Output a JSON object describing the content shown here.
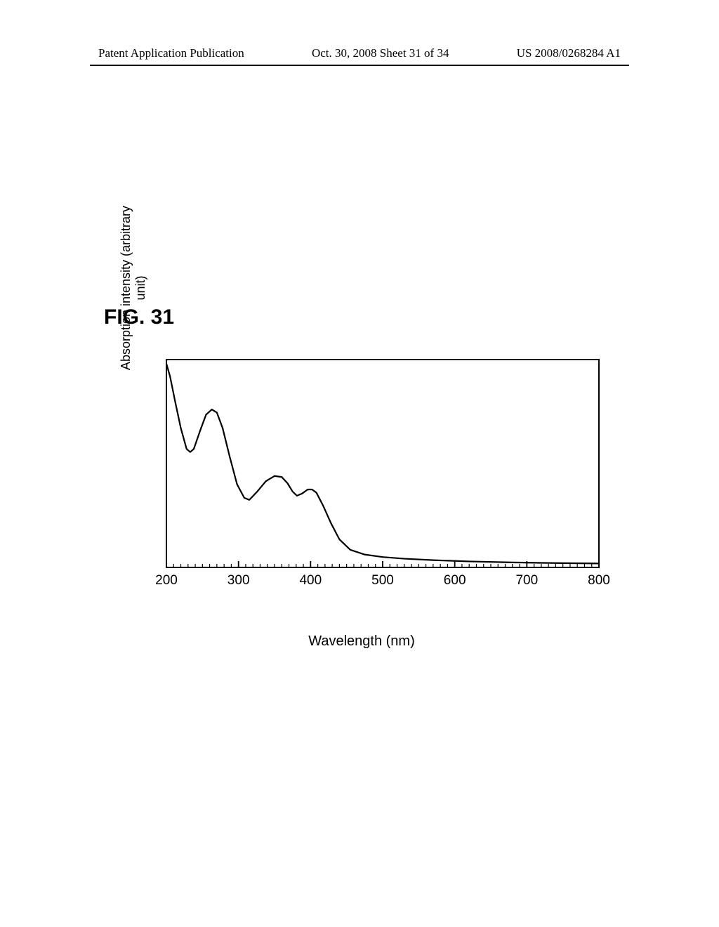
{
  "header": {
    "left": "Patent Application Publication",
    "middle": "Oct. 30, 2008  Sheet 31 of 34",
    "right": "US 2008/0268284 A1"
  },
  "figure": {
    "label": "FIG. 31"
  },
  "chart": {
    "type": "line",
    "xlabel": "Wavelength (nm)",
    "ylabel_line1": "Absorption intensity (arbitrary",
    "ylabel_line2": "unit)",
    "xlim": [
      200,
      800
    ],
    "ylim": [
      0,
      1
    ],
    "xticks_major": [
      200,
      300,
      400,
      500,
      600,
      700,
      800
    ],
    "xticks_minor_step": 10,
    "label_fontsize": 19,
    "axis_fontsize": 20,
    "axis_color": "#000000",
    "line_color": "#000000",
    "line_width": 2.2,
    "background_color": "#ffffff",
    "major_tick_len": 9,
    "minor_tick_len": 5,
    "series": [
      {
        "x": 200,
        "y": 0.98
      },
      {
        "x": 205,
        "y": 0.92
      },
      {
        "x": 212,
        "y": 0.8
      },
      {
        "x": 220,
        "y": 0.67
      },
      {
        "x": 228,
        "y": 0.57
      },
      {
        "x": 233,
        "y": 0.555
      },
      {
        "x": 238,
        "y": 0.57
      },
      {
        "x": 247,
        "y": 0.66
      },
      {
        "x": 255,
        "y": 0.735
      },
      {
        "x": 263,
        "y": 0.76
      },
      {
        "x": 270,
        "y": 0.745
      },
      {
        "x": 278,
        "y": 0.67
      },
      {
        "x": 288,
        "y": 0.53
      },
      {
        "x": 298,
        "y": 0.4
      },
      {
        "x": 308,
        "y": 0.335
      },
      {
        "x": 315,
        "y": 0.325
      },
      {
        "x": 326,
        "y": 0.365
      },
      {
        "x": 338,
        "y": 0.415
      },
      {
        "x": 350,
        "y": 0.44
      },
      {
        "x": 360,
        "y": 0.435
      },
      {
        "x": 368,
        "y": 0.405
      },
      {
        "x": 375,
        "y": 0.365
      },
      {
        "x": 381,
        "y": 0.345
      },
      {
        "x": 388,
        "y": 0.355
      },
      {
        "x": 396,
        "y": 0.375
      },
      {
        "x": 402,
        "y": 0.375
      },
      {
        "x": 408,
        "y": 0.36
      },
      {
        "x": 417,
        "y": 0.3
      },
      {
        "x": 428,
        "y": 0.215
      },
      {
        "x": 440,
        "y": 0.135
      },
      {
        "x": 455,
        "y": 0.085
      },
      {
        "x": 475,
        "y": 0.062
      },
      {
        "x": 500,
        "y": 0.05
      },
      {
        "x": 530,
        "y": 0.042
      },
      {
        "x": 570,
        "y": 0.035
      },
      {
        "x": 620,
        "y": 0.029
      },
      {
        "x": 680,
        "y": 0.024
      },
      {
        "x": 740,
        "y": 0.021
      },
      {
        "x": 800,
        "y": 0.019
      }
    ]
  }
}
